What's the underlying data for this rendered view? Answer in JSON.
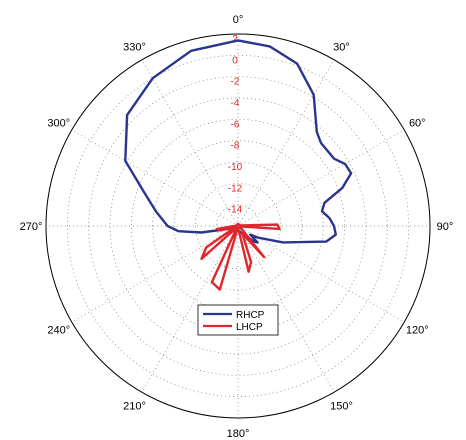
{
  "chart_data": {
    "type": "polar",
    "radial_range": [
      -16,
      2
    ],
    "radial_ticks": [
      "2",
      "0",
      "-2",
      "-4",
      "-6",
      "-8",
      "-10",
      "-12",
      "-14"
    ],
    "angle_ticks": [
      "0°",
      "30°",
      "60°",
      "90°",
      "120°",
      "150°",
      "180°",
      "210°",
      "240°",
      "270°",
      "300°",
      "330°"
    ],
    "grid": true,
    "legend_position": "bottom-center",
    "series": [
      {
        "name": "RHCP",
        "color": "#2a3590",
        "points": [
          [
            0,
            1.4
          ],
          [
            10,
            1.1
          ],
          [
            20,
            0.2
          ],
          [
            30,
            -1.8
          ],
          [
            40,
            -4.5
          ],
          [
            45,
            -5.0
          ],
          [
            55,
            -5.0
          ],
          [
            60,
            -4.4
          ],
          [
            65,
            -4.3
          ],
          [
            70,
            -5.6
          ],
          [
            75,
            -7.6
          ],
          [
            80,
            -8.0
          ],
          [
            85,
            -7.4
          ],
          [
            90,
            -7.0
          ],
          [
            95,
            -6.8
          ],
          [
            100,
            -7.6
          ],
          [
            110,
            -11.5
          ],
          [
            120,
            -13.8
          ],
          [
            125,
            -14.6
          ],
          [
            130,
            -13.6
          ],
          [
            135,
            -14.0
          ],
          [
            150,
            -15.2
          ],
          [
            180,
            -15.6
          ],
          [
            220,
            -15.4
          ],
          [
            250,
            -15.3
          ],
          [
            260,
            -12.5
          ],
          [
            265,
            -10.4
          ],
          [
            270,
            -9.4
          ],
          [
            280,
            -8.2
          ],
          [
            290,
            -6.6
          ],
          [
            300,
            -3.8
          ],
          [
            315,
            -1.3
          ],
          [
            330,
            0.0
          ],
          [
            345,
            1.0
          ],
          [
            360,
            1.4
          ]
        ]
      },
      {
        "name": "LHCP",
        "color": "#e0262d",
        "points": [
          [
            0,
            -15.8
          ],
          [
            75,
            -15.8
          ],
          [
            82,
            -15.6
          ],
          [
            88,
            -12.3
          ],
          [
            94,
            -12.1
          ],
          [
            100,
            -15.8
          ],
          [
            120,
            -15.8
          ],
          [
            127,
            -15.6
          ],
          [
            140,
            -12.2
          ],
          [
            150,
            -15.2
          ],
          [
            160,
            -12.4
          ],
          [
            167,
            -11.6
          ],
          [
            175,
            -15.8
          ],
          [
            187,
            -15.8
          ],
          [
            196,
            -9.8
          ],
          [
            205,
            -10.2
          ],
          [
            213,
            -15.8
          ],
          [
            220,
            -15.8
          ],
          [
            228,
            -11.4
          ],
          [
            236,
            -12.4
          ],
          [
            244,
            -15.6
          ],
          [
            250,
            -15.8
          ],
          [
            256,
            -14.3
          ],
          [
            262,
            -14.0
          ],
          [
            268,
            -15.5
          ],
          [
            275,
            -15.8
          ],
          [
            360,
            -15.8
          ]
        ]
      }
    ]
  }
}
